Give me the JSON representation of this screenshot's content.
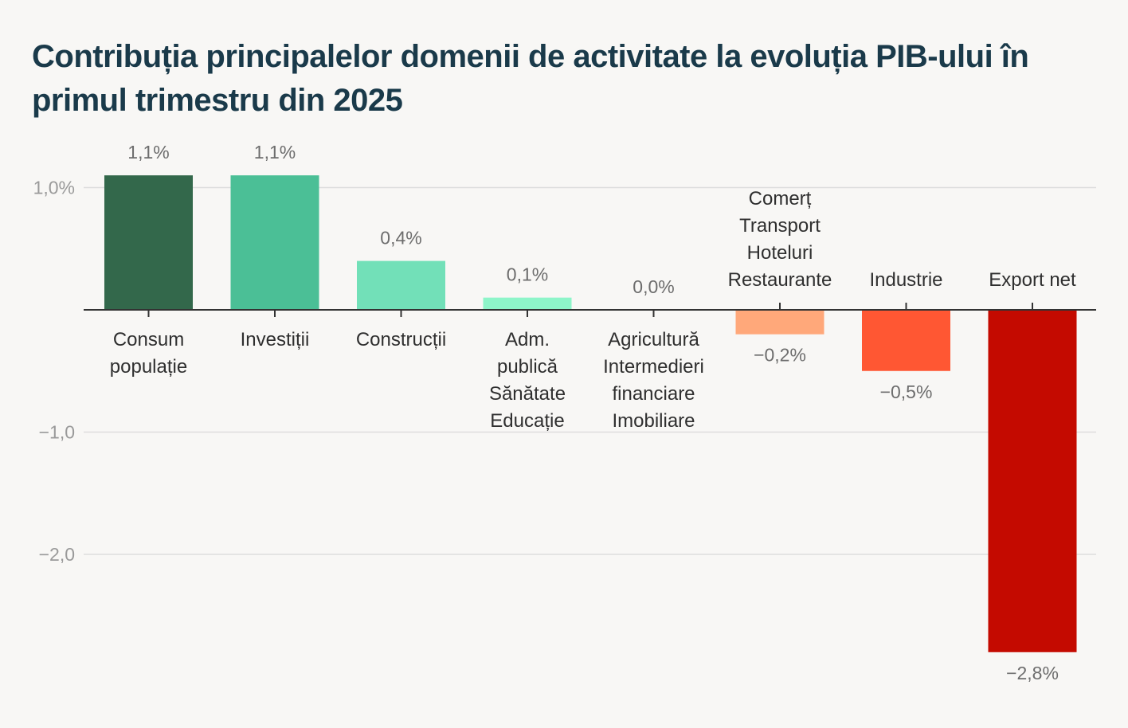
{
  "title": "Contribuția principalelor domenii de activitate la evoluția PIB-ului în primul trimestru din 2025",
  "chart_data": {
    "type": "bar",
    "title": "Contribuția principalelor domenii de activitate la evoluția PIB-ului în primul trimestru din 2025",
    "categories": [
      [
        "Consum",
        "populație"
      ],
      [
        "Investiții"
      ],
      [
        "Construcții"
      ],
      [
        "Adm.",
        "publică",
        "Sănătate",
        "Educație"
      ],
      [
        "Agricultură",
        "Intermedieri",
        "financiare",
        "Imobiliare"
      ],
      [
        "Comerț",
        "Transport",
        "Hoteluri",
        "Restaurante"
      ],
      [
        "Industrie"
      ],
      [
        "Export net"
      ]
    ],
    "values": [
      1.1,
      1.1,
      0.4,
      0.1,
      0.0,
      -0.2,
      -0.5,
      -2.8
    ],
    "value_labels": [
      "1,1%",
      "1,1%",
      "0,4%",
      "0,1%",
      "0,0%",
      "−0,2%",
      "−0,5%",
      "−2,8%"
    ],
    "colors": [
      "#33684b",
      "#4bbf96",
      "#72e0b8",
      "#8ef5c9",
      "#8ef5c9",
      "#ffa87a",
      "#ff5733",
      "#c40a00"
    ],
    "yticks": [
      1.0,
      -1.0,
      -2.0
    ],
    "ytick_labels": [
      "1,0%",
      "−1,0",
      "−2,0"
    ],
    "ylim": [
      -2.8,
      1.1
    ],
    "grid": true,
    "xlabel": "",
    "ylabel": ""
  }
}
